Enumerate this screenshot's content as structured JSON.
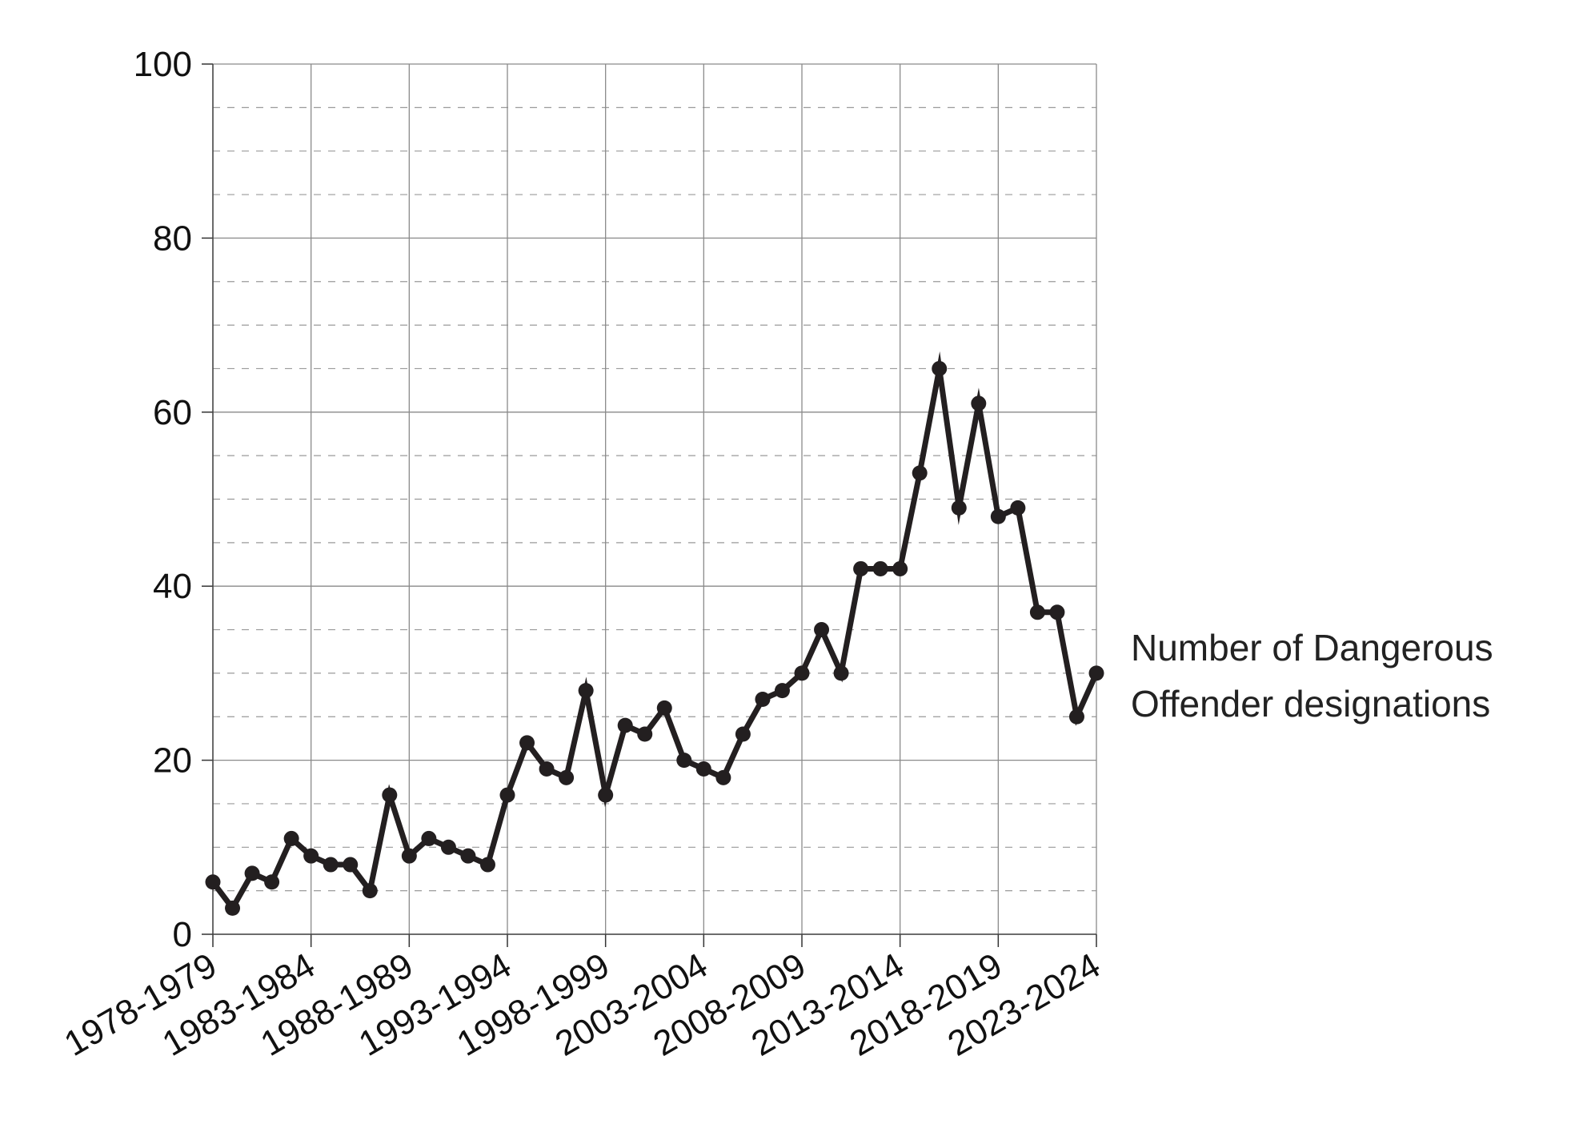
{
  "chart_data": {
    "type": "line",
    "title": "",
    "xlabel": "",
    "ylabel": "",
    "ylim": [
      0,
      100
    ],
    "y_major_ticks": [
      0,
      20,
      40,
      60,
      80,
      100
    ],
    "y_minor_step": 5,
    "grid": true,
    "x": [
      "1978-1979",
      "1979-1980",
      "1980-1981",
      "1981-1982",
      "1982-1983",
      "1983-1984",
      "1984-1985",
      "1985-1986",
      "1986-1987",
      "1987-1988",
      "1988-1989",
      "1989-1990",
      "1990-1991",
      "1991-1992",
      "1992-1993",
      "1993-1994",
      "1994-1995",
      "1995-1996",
      "1996-1997",
      "1997-1998",
      "1998-1999",
      "1999-2000",
      "2000-2001",
      "2001-2002",
      "2002-2003",
      "2003-2004",
      "2004-2005",
      "2005-2006",
      "2006-2007",
      "2007-2008",
      "2008-2009",
      "2009-2010",
      "2010-2011",
      "2011-2012",
      "2012-2013",
      "2013-2014",
      "2014-2015",
      "2015-2016",
      "2016-2017",
      "2017-2018",
      "2018-2019",
      "2019-2020",
      "2020-2021",
      "2021-2022",
      "2022-2023",
      "2023-2024"
    ],
    "x_tick_labels": [
      "1978-1979",
      "1983-1984",
      "1988-1989",
      "1993-1994",
      "1998-1999",
      "2003-2004",
      "2008-2009",
      "2013-2014",
      "2018-2019",
      "2023-2024"
    ],
    "series": [
      {
        "name": "Number of Dangerous Offender designations",
        "name_lines": [
          "Number of Dangerous",
          "Offender designations"
        ],
        "color": "#231f20",
        "values": [
          6,
          3,
          7,
          6,
          11,
          9,
          8,
          8,
          5,
          16,
          9,
          11,
          10,
          9,
          8,
          16,
          22,
          19,
          18,
          28,
          16,
          24,
          23,
          26,
          20,
          19,
          18,
          23,
          27,
          28,
          30,
          35,
          30,
          42,
          42,
          42,
          53,
          65,
          49,
          61,
          48,
          49,
          37,
          37,
          25,
          30
        ]
      }
    ],
    "legend": "right-of-line-end"
  }
}
